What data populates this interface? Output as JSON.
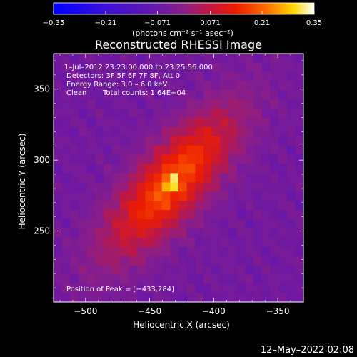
{
  "chart_data": {
    "type": "heatmap",
    "title": "Reconstructed RHESSI Image",
    "xlabel": "Heliocentric X (arcsec)",
    "ylabel": "Heliocentric Y (arcsec)",
    "xlim": [
      -525,
      -330
    ],
    "ylim": [
      200,
      375
    ],
    "x_ticks": [
      -500,
      -450,
      -400,
      -350
    ],
    "x_tick_labels": [
      "−500",
      "−450",
      "−400",
      "−350"
    ],
    "y_ticks": [
      250,
      300,
      350
    ],
    "y_tick_labels": [
      "250",
      "300",
      "350"
    ],
    "colorbar": {
      "ticks": [
        -0.35,
        -0.21,
        -0.071,
        0.071,
        0.21,
        0.35
      ],
      "tick_labels": [
        "−0.35",
        "−0.21",
        "−0.071",
        "0.071",
        "0.21",
        "0.35"
      ],
      "range": [
        -0.35,
        0.35
      ],
      "unit_label": "(photons cm⁻² s⁻¹ asec⁻²)"
    },
    "source": {
      "peak": [
        -433,
        284
      ],
      "peak_value": 0.35,
      "orientation_deg": 45,
      "core_sigma": [
        9,
        6
      ],
      "halo_sigma": [
        46,
        17
      ]
    },
    "annotations": {
      "time_range": "1–Jul–2012 23:23:00.000 to 23:25:56.000",
      "detectors": "Detectors: 3F 5F 6F 7F 8F, Att 0",
      "energy_range": "Energy Range: 3.0 – 6.0 keV",
      "method": "Clean",
      "total_counts": "Total counts: 1.64E+04",
      "peak_position": "Position of Peak = [−433,284]"
    }
  },
  "footer": {
    "timestamp": "12–May–2022 02:08"
  }
}
